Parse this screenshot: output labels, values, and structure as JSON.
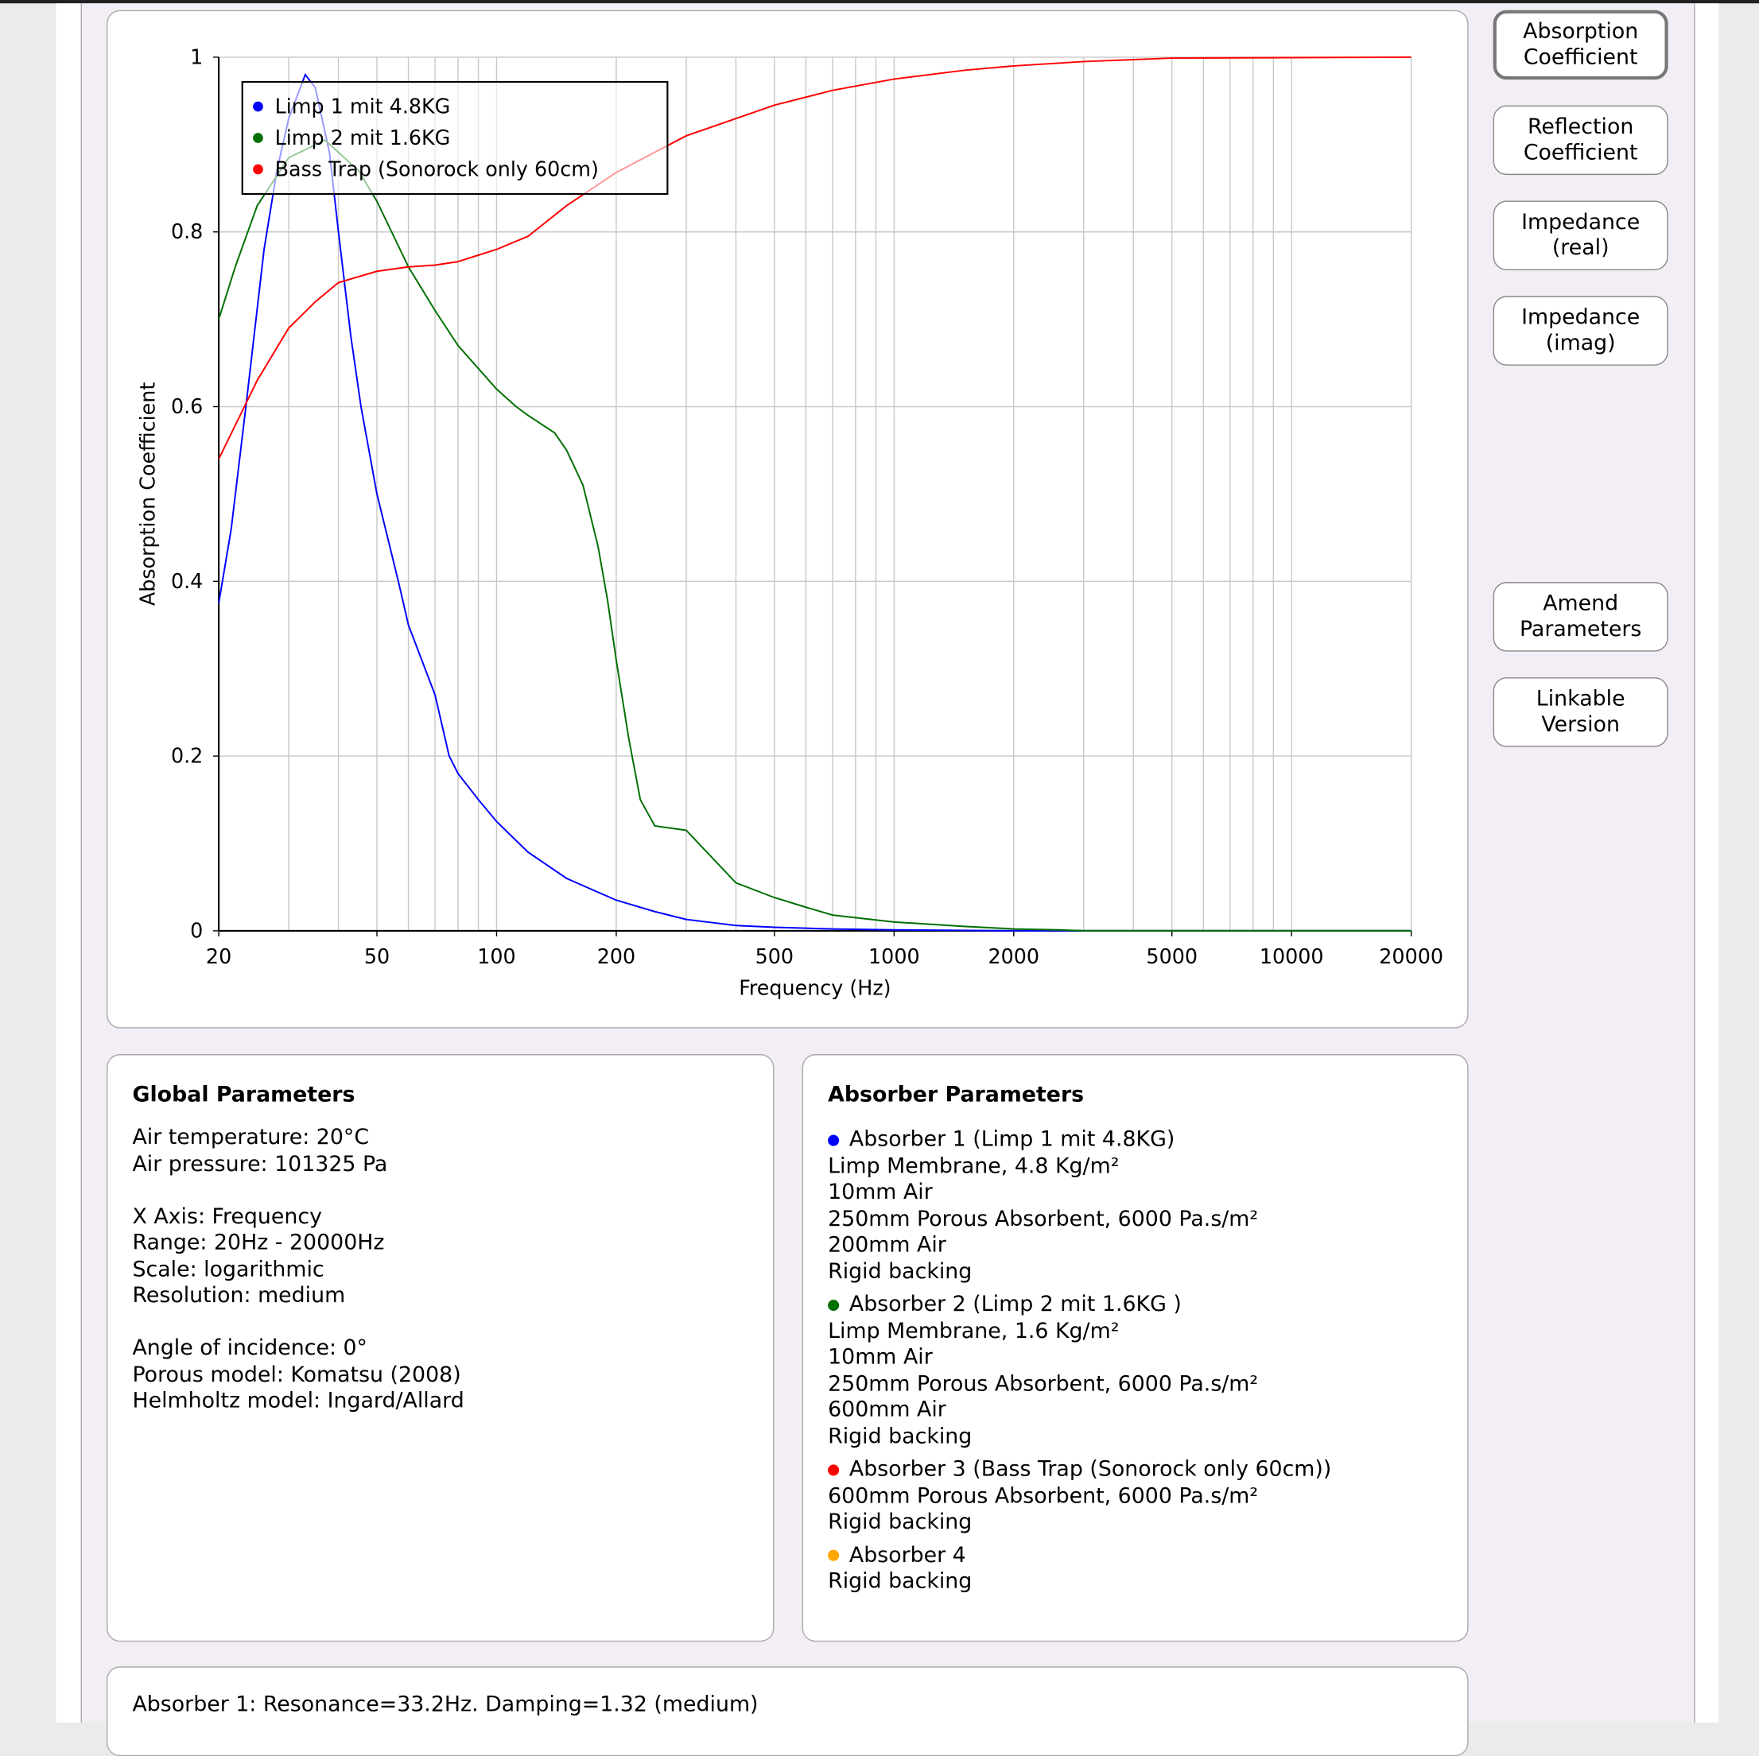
{
  "buttons": [
    "Absorption Coefficient",
    "Reflection Coefficient",
    "Impedance (real)",
    "Impedance (imag)",
    "Amend Parameters",
    "Linkable Version"
  ],
  "colors": {
    "series1": "#0000ff",
    "series2": "#007000",
    "series3": "#ff0000",
    "absorber4": "#ffa500"
  },
  "chart_data": {
    "type": "line",
    "xlabel": "Frequency (Hz)",
    "ylabel": "Absorption Coefficient",
    "xscale": "log",
    "xlim": [
      20,
      20000
    ],
    "ylim": [
      0,
      1
    ],
    "xticks": [
      20,
      50,
      100,
      200,
      500,
      1000,
      2000,
      5000,
      10000,
      20000
    ],
    "xgrid": [
      20,
      30,
      40,
      50,
      60,
      70,
      80,
      90,
      100,
      200,
      300,
      400,
      500,
      600,
      700,
      800,
      900,
      1000,
      2000,
      3000,
      4000,
      5000,
      6000,
      7000,
      8000,
      9000,
      10000,
      20000
    ],
    "yticks": [
      "0",
      "0.2",
      "0.4",
      "0.6",
      "0.8",
      "1"
    ],
    "legend_position": "top-left",
    "series": [
      {
        "name": "Limp 1 mit 4.8KG",
        "color": "#0000ff",
        "points": [
          [
            20,
            0.375
          ],
          [
            21.5,
            0.46
          ],
          [
            23.4,
            0.6
          ],
          [
            26,
            0.78
          ],
          [
            28,
            0.87
          ],
          [
            30,
            0.93
          ],
          [
            33,
            0.98
          ],
          [
            35,
            0.965
          ],
          [
            38,
            0.89
          ],
          [
            40,
            0.8
          ],
          [
            43,
            0.68
          ],
          [
            45.6,
            0.6
          ],
          [
            50,
            0.5
          ],
          [
            56.6,
            0.4
          ],
          [
            60,
            0.35
          ],
          [
            70,
            0.27
          ],
          [
            76,
            0.2
          ],
          [
            80,
            0.18
          ],
          [
            90,
            0.15
          ],
          [
            100,
            0.125
          ],
          [
            120,
            0.09
          ],
          [
            150,
            0.06
          ],
          [
            200,
            0.035
          ],
          [
            250,
            0.022
          ],
          [
            300,
            0.013
          ],
          [
            400,
            0.006
          ],
          [
            500,
            0.004
          ],
          [
            700,
            0.002
          ],
          [
            1000,
            0.001
          ],
          [
            2000,
            0
          ],
          [
            20000,
            0
          ]
        ]
      },
      {
        "name": "Limp 2 mit 1.6KG",
        "color": "#007000",
        "points": [
          [
            20,
            0.7
          ],
          [
            22,
            0.76
          ],
          [
            25,
            0.83
          ],
          [
            30,
            0.885
          ],
          [
            37,
            0.905
          ],
          [
            45,
            0.87
          ],
          [
            50,
            0.835
          ],
          [
            60,
            0.76
          ],
          [
            70,
            0.71
          ],
          [
            80,
            0.67
          ],
          [
            100,
            0.62
          ],
          [
            112,
            0.6
          ],
          [
            120,
            0.59
          ],
          [
            140,
            0.57
          ],
          [
            150,
            0.55
          ],
          [
            165,
            0.51
          ],
          [
            180,
            0.44
          ],
          [
            190,
            0.38
          ],
          [
            200,
            0.31
          ],
          [
            215,
            0.22
          ],
          [
            230,
            0.15
          ],
          [
            250,
            0.12
          ],
          [
            300,
            0.115
          ],
          [
            330,
            0.095
          ],
          [
            400,
            0.055
          ],
          [
            500,
            0.038
          ],
          [
            600,
            0.027
          ],
          [
            700,
            0.018
          ],
          [
            1000,
            0.01
          ],
          [
            1500,
            0.005
          ],
          [
            2000,
            0.002
          ],
          [
            2600,
            0.001
          ],
          [
            3000,
            0
          ],
          [
            20000,
            0
          ]
        ]
      },
      {
        "name": "Bass Trap (Sonorock only 60cm)",
        "color": "#ff0000",
        "points": [
          [
            20,
            0.54
          ],
          [
            25,
            0.63
          ],
          [
            30,
            0.69
          ],
          [
            35,
            0.72
          ],
          [
            40,
            0.742
          ],
          [
            50,
            0.755
          ],
          [
            60,
            0.76
          ],
          [
            70,
            0.762
          ],
          [
            80,
            0.766
          ],
          [
            100,
            0.78
          ],
          [
            120,
            0.795
          ],
          [
            150,
            0.83
          ],
          [
            200,
            0.868
          ],
          [
            300,
            0.91
          ],
          [
            500,
            0.945
          ],
          [
            700,
            0.962
          ],
          [
            1000,
            0.975
          ],
          [
            1500,
            0.985
          ],
          [
            2000,
            0.99
          ],
          [
            3000,
            0.995
          ],
          [
            5000,
            0.999
          ],
          [
            20000,
            1
          ]
        ]
      }
    ]
  },
  "global": {
    "title": "Global Parameters",
    "lines": [
      "Air temperature: 20°C",
      "Air pressure: 101325 Pa",
      "",
      "X Axis: Frequency",
      "Range: 20Hz - 20000Hz",
      "Scale: logarithmic",
      "Resolution: medium",
      "",
      "Angle of incidence: 0°",
      "Porous model: Komatsu (2008)",
      "Helmholtz model: Ingard/Allard"
    ]
  },
  "absorbers": {
    "title": "Absorber Parameters",
    "items": [
      {
        "label": "Absorber 1 (Limp 1 mit 4.8KG)",
        "color": "#0000ff",
        "lines": [
          "Limp Membrane, 4.8 Kg/m²",
          "10mm Air",
          "250mm Porous Absorbent, 6000 Pa.s/m²",
          "200mm Air",
          "Rigid backing"
        ]
      },
      {
        "label": "Absorber 2 (Limp 2 mit 1.6KG )",
        "color": "#007000",
        "lines": [
          "Limp Membrane, 1.6 Kg/m²",
          "10mm Air",
          "250mm Porous Absorbent, 6000 Pa.s/m²",
          "600mm Air",
          "Rigid backing"
        ]
      },
      {
        "label": "Absorber 3 (Bass Trap (Sonorock only 60cm))",
        "color": "#ff0000",
        "lines": [
          "600mm Porous Absorbent, 6000 Pa.s/m²",
          "Rigid backing"
        ]
      },
      {
        "label": "Absorber 4",
        "color": "#ffa500",
        "lines": [
          "Rigid backing"
        ]
      }
    ]
  },
  "results": {
    "line1": "Absorber 1: Resonance=33.2Hz. Damping=1.32 (medium)"
  }
}
